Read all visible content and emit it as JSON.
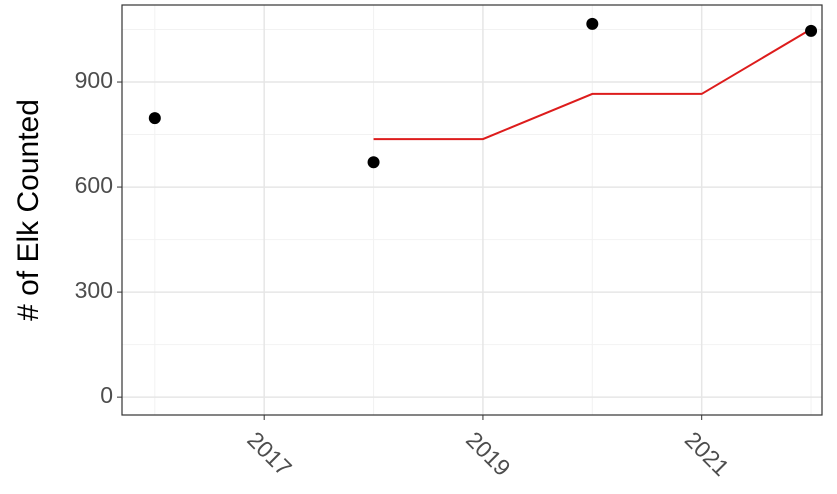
{
  "chart_data": {
    "type": "scatter",
    "y_label": "# of Elk Counted",
    "series": [
      {
        "type": "scatter",
        "color": "#000000",
        "x": [
          2016,
          2018,
          2020,
          2022
        ],
        "values": [
          797,
          671,
          1066,
          1046
        ]
      },
      {
        "type": "line",
        "color": "#dd1c1c",
        "x": [
          2018,
          2019,
          2020,
          2021,
          2022
        ],
        "values": [
          737,
          737,
          866,
          866,
          1051
        ]
      }
    ],
    "xlim": [
      2015.7,
      2022.1
    ],
    "xticks": [
      2017,
      2019,
      2021
    ],
    "ylim": [
      -51,
      1120
    ],
    "yticks": [
      0,
      300,
      600,
      900
    ],
    "x_minor_gridlines": [
      2016,
      2018,
      2020,
      2022
    ],
    "y_minor_gridlines": [
      150,
      450,
      750,
      1050
    ],
    "grid": true
  }
}
